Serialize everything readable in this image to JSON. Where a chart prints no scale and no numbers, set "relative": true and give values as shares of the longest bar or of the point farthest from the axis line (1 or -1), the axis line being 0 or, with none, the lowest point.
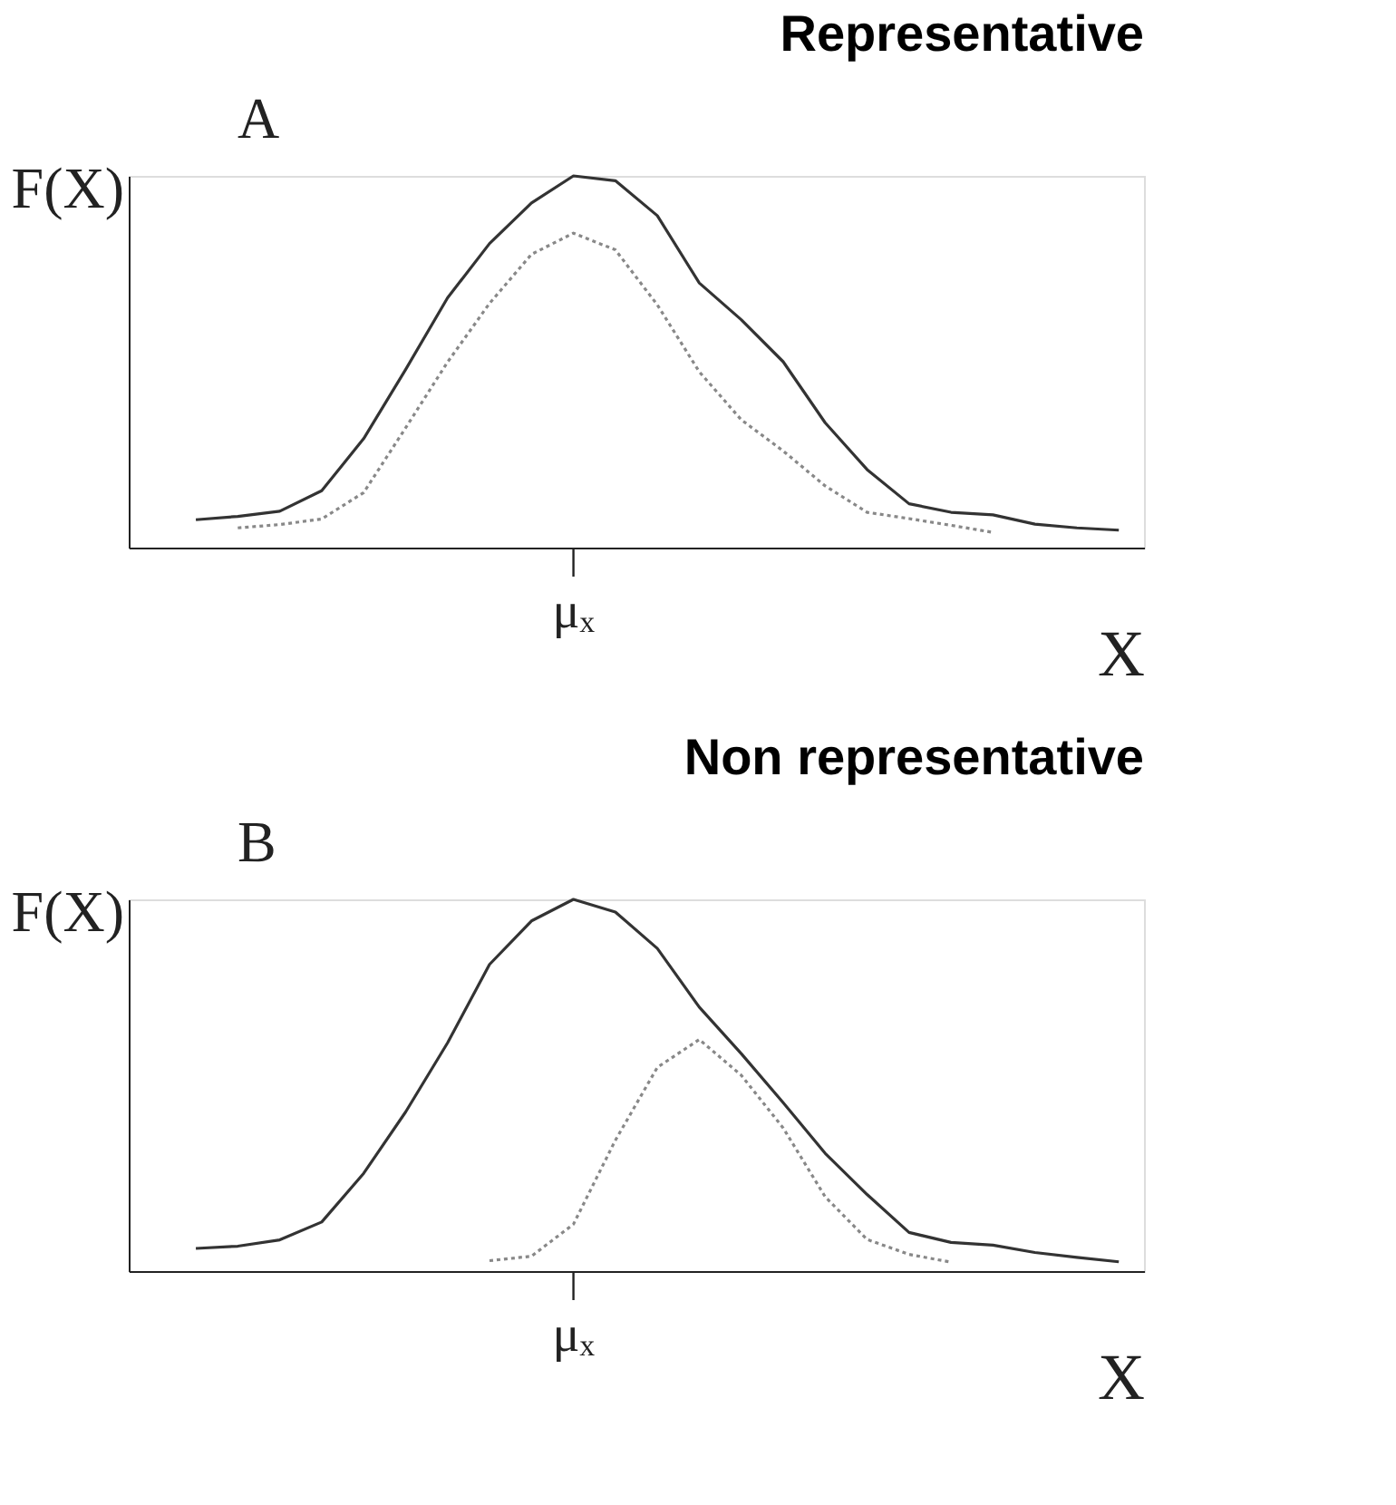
{
  "chart_data": [
    {
      "type": "line",
      "title": "Representative",
      "annotations": [
        "A",
        "μₓ"
      ],
      "xlabel": "X",
      "ylabel": "F(X)",
      "relative": true,
      "categories": [
        null,
        null,
        null,
        null,
        null,
        null,
        null,
        null,
        null,
        null,
        null,
        null,
        null,
        null,
        null,
        null,
        null,
        null,
        null,
        null,
        null,
        null,
        null,
        null
      ],
      "series": [
        {
          "color": "#333333",
          "line_style": "solid",
          "values": [
            null,
            0.075,
            0.084,
            0.098,
            0.153,
            0.293,
            0.479,
            0.672,
            0.818,
            0.927,
            1.0,
            0.987,
            0.893,
            0.712,
            0.613,
            0.5,
            0.336,
            0.21,
            0.118,
            0.095,
            0.088,
            0.063,
            0.053,
            0.047
          ]
        },
        {
          "color": "#888888",
          "line_style": "dotted",
          "values": [
            null,
            null,
            0.053,
            0.062,
            0.077,
            0.148,
            0.322,
            0.499,
            0.657,
            0.789,
            0.846,
            0.801,
            0.653,
            0.473,
            0.344,
            0.26,
            0.166,
            0.095,
            0.078,
            0.06,
            0.041,
            null,
            null,
            null
          ]
        }
      ]
    },
    {
      "type": "line",
      "title": "Non representative",
      "annotations": [
        "B",
        "μₓ"
      ],
      "xlabel": "X",
      "ylabel": "F(X)",
      "relative": true,
      "categories": [
        null,
        null,
        null,
        null,
        null,
        null,
        null,
        null,
        null,
        null,
        null,
        null,
        null,
        null,
        null,
        null,
        null,
        null,
        null,
        null,
        null,
        null,
        null,
        null
      ],
      "series": [
        {
          "color": "#333333",
          "line_style": "solid",
          "values": [
            null,
            0.061,
            0.067,
            0.084,
            0.132,
            0.263,
            0.428,
            0.614,
            0.825,
            0.942,
            1.0,
            0.966,
            0.868,
            0.71,
            0.585,
            0.453,
            0.317,
            0.206,
            0.104,
            0.077,
            0.07,
            0.05,
            0.037,
            0.025
          ]
        },
        {
          "color": "#888888",
          "line_style": "dotted",
          "values": [
            null,
            null,
            null,
            null,
            null,
            null,
            null,
            null,
            0.028,
            0.04,
            0.126,
            0.352,
            0.548,
            0.623,
            0.527,
            0.385,
            0.2,
            0.085,
            0.045,
            0.024,
            null,
            null,
            null,
            null
          ]
        }
      ]
    }
  ]
}
